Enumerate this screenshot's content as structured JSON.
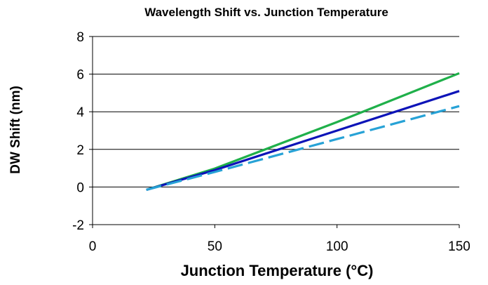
{
  "chart_data": {
    "type": "line",
    "title": "Wavelength Shift vs. Junction Temperature",
    "xlabel": "Junction Temperature (°C)",
    "ylabel": "DW Shift (nm)",
    "xlim": [
      0,
      150
    ],
    "ylim": [
      -2,
      8
    ],
    "xticks": [
      0,
      50,
      100,
      150
    ],
    "yticks": [
      -2,
      0,
      2,
      4,
      6,
      8
    ],
    "grid": "horizontal",
    "series": [
      {
        "color": "#1fb04a",
        "style": "solid",
        "x": [
          22,
          50,
          100,
          150
        ],
        "y": [
          -0.15,
          0.98,
          3.45,
          6.05
        ]
      },
      {
        "color": "#0d14b8",
        "style": "solid",
        "x": [
          22,
          50,
          100,
          150
        ],
        "y": [
          -0.15,
          0.9,
          3.0,
          5.1
        ]
      },
      {
        "color": "#27a2d6",
        "style": "dashed",
        "x": [
          22,
          50,
          100,
          150
        ],
        "y": [
          -0.15,
          0.8,
          2.55,
          4.3
        ]
      }
    ]
  }
}
